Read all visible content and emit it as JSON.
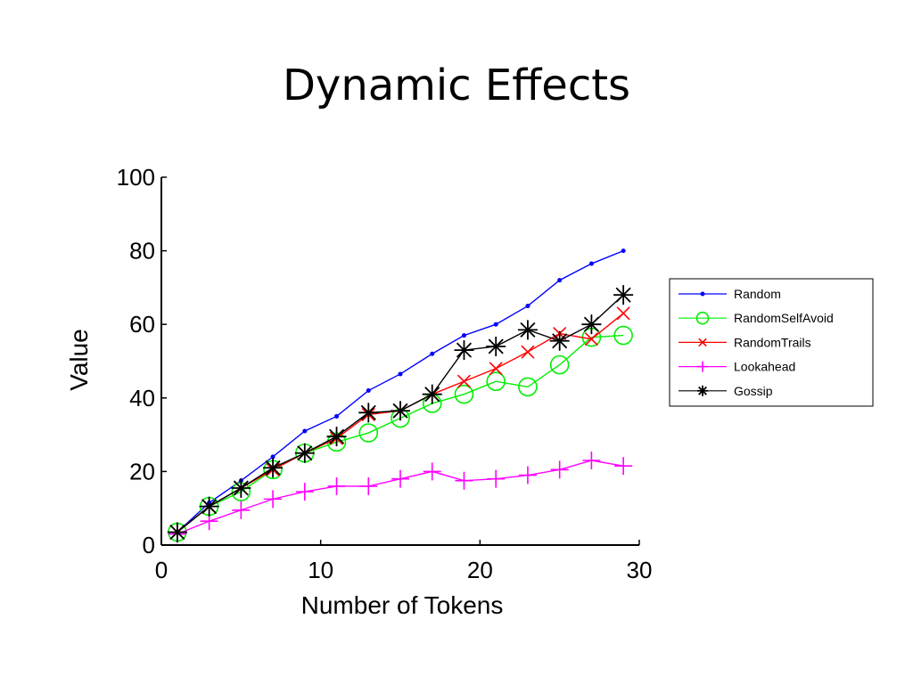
{
  "slide": {
    "title": "Dynamic Effects"
  },
  "chart_data": {
    "type": "line",
    "title": "",
    "xlabel": "Number of Tokens",
    "ylabel": "Value",
    "xlim": [
      0,
      30
    ],
    "ylim": [
      0,
      100
    ],
    "xticks": [
      0,
      10,
      20,
      30
    ],
    "yticks": [
      0,
      20,
      40,
      60,
      80,
      100
    ],
    "grid": false,
    "legend_position": "right",
    "x": [
      1,
      3,
      5,
      7,
      9,
      11,
      13,
      15,
      17,
      19,
      21,
      23,
      25,
      27,
      29
    ],
    "series": [
      {
        "name": "Random",
        "color": "#0000ff",
        "marker": "dot",
        "values": [
          3.5,
          11.5,
          17.5,
          24,
          31,
          35,
          42,
          46.5,
          52,
          57,
          60,
          65,
          72,
          76.5,
          80
        ]
      },
      {
        "name": "RandomSelfAvoid",
        "color": "#00ee00",
        "marker": "circle",
        "values": [
          3.5,
          10.5,
          14.5,
          20.5,
          25,
          28,
          30.5,
          34.5,
          38.5,
          41,
          44.5,
          43,
          49,
          56.5,
          57
        ]
      },
      {
        "name": "RandomTrails",
        "color": "#ff0000",
        "marker": "x",
        "values": [
          3.5,
          10.5,
          15.5,
          20.5,
          25,
          29,
          35.5,
          36.5,
          41,
          44.5,
          48,
          52.5,
          57.5,
          56,
          63
        ]
      },
      {
        "name": "Lookahead",
        "color": "#ff00ff",
        "marker": "plus",
        "values": [
          3,
          6.5,
          9.5,
          12.5,
          14.5,
          16,
          16,
          18,
          20,
          17.5,
          18,
          19,
          20.5,
          23,
          21.5
        ]
      },
      {
        "name": "Gossip",
        "color": "#000000",
        "marker": "star",
        "values": [
          3.5,
          10.5,
          15.5,
          21,
          25,
          29.5,
          36,
          36.5,
          41,
          53,
          54,
          58.5,
          55.5,
          60,
          68
        ]
      }
    ]
  }
}
